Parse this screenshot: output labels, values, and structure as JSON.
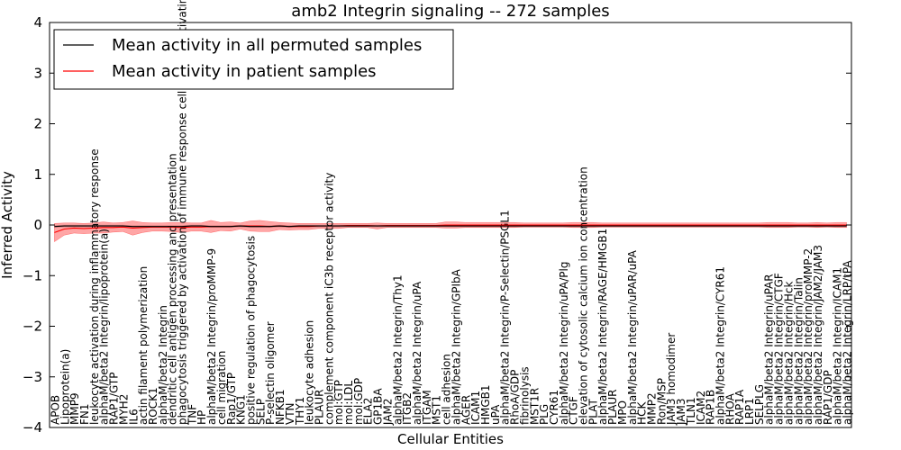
{
  "chart_data": {
    "type": "line",
    "title": "amb2 Integrin signaling -- 272 samples",
    "xlabel": "Cellular Entities",
    "ylabel": "Inferred Activity",
    "ylim": [
      -4,
      4
    ],
    "yticks": [
      -4,
      -3,
      -2,
      -1,
      0,
      1,
      2,
      3,
      4
    ],
    "legend": {
      "position": "top-left",
      "entries": [
        {
          "label": "Mean activity in all permuted samples",
          "color": "#000000"
        },
        {
          "label": "Mean activity in patient samples",
          "color": "#ff0000"
        }
      ]
    },
    "categories": [
      "APOB",
      "Lipoprotein(a)",
      "MMP9",
      "FN1",
      "leukocyte activation during inflammatory response",
      "alphaM/beta2 Integrin/lipoprotein(a)",
      "RAP1/GTP",
      "MYH2",
      "IL6",
      "actin filament polymerization",
      "ROCK1",
      "alphaM/beta2 Integrin",
      "dendritic cell antigen processing and presentation",
      "phagocytosis triggered by activation of immune response cell surface activating receptor",
      "TNF",
      "HP",
      "alphaM/beta2 Integrin/proMMP-9",
      "cell migration",
      "Rap1/GTP",
      "KNG1",
      "positive regulation of phagocytosis",
      "SELP",
      "P-selectin oligomer",
      "NFKB1",
      "VTN",
      "THY1",
      "leukocyte adhesion",
      "PLAUR",
      "complement component iC3b receptor activity",
      "mol:GTP",
      "mol:LDL",
      "mol:GDP",
      "ELA2",
      "GP1BA",
      "JAM2",
      "alphaM/beta2 Integrin/Thy1",
      "ITGB2",
      "alphaM/beta2 Integrin/uPA",
      "ITGAM",
      "MST1",
      "cell adhesion",
      "alphaM/beta2 Integrin/GPIbA",
      "AGER",
      "ICAM1",
      "HMGB1",
      "uPA",
      "alphaM/beta2 Integrin/P-Selectin/PSGL1",
      "RhoA/GDP",
      "fibrinolysis",
      "MST1R",
      "PLG",
      "CYR61",
      "alphaM/beta2 Integrin/uPA/Plg",
      "CTGF",
      "elevation of cytosolic calcium ion concentration",
      "PLAT",
      "alphaM/beta2 Integrin/RAGE/HMGB1",
      "PLAUR",
      "MPO",
      "alphaM/beta2 Integrin/uPAR/uPA",
      "HCK",
      "MMP2",
      "Ron/MSP",
      "JAM3 homodimer",
      "JAM3",
      "TLN1",
      "ICAM2",
      "RAP1B",
      "alphaM/beta2 Integrin/CYR61",
      "RHOA",
      "RAP1A",
      "LRP1",
      "SELPLG",
      "alphaM/beta2 Integrin/uPAR",
      "alphaM/beta2 Integrin/CTGF",
      "alphaM/beta2 Integrin/Hck",
      "alphaM/beta2 Integrin/Talin",
      "alphaM/beta2 Integrin/proMMP-2",
      "alphaM/beta2 Integrin/JAM2/JAM3",
      "RAP1/GDP",
      "alphaM/beta2 Integrin/ICAM1",
      "alphaM/beta2 Integrin/LRP/tPA"
    ],
    "series": [
      {
        "name": "Mean activity in all permuted samples",
        "color": "#000000",
        "values": [
          -0.03,
          -0.02,
          -0.02,
          -0.02,
          -0.02,
          -0.02,
          -0.02,
          -0.02,
          -0.03,
          -0.03,
          -0.03,
          -0.03,
          -0.03,
          -0.03,
          -0.02,
          -0.02,
          -0.03,
          -0.03,
          -0.03,
          -0.02,
          -0.03,
          -0.03,
          -0.03,
          -0.02,
          -0.03,
          -0.02,
          -0.02,
          -0.02,
          -0.02,
          -0.02,
          -0.02,
          -0.02,
          -0.02,
          -0.02,
          -0.02,
          -0.02,
          -0.02,
          -0.02,
          -0.02,
          -0.02,
          -0.02,
          -0.02,
          -0.02,
          -0.02,
          -0.02,
          -0.02,
          -0.02,
          -0.02,
          -0.02,
          -0.02,
          -0.02,
          -0.02,
          -0.02,
          -0.02,
          -0.02,
          -0.02,
          -0.02,
          -0.02,
          -0.02,
          -0.02,
          -0.02,
          -0.02,
          -0.02,
          -0.02,
          -0.02,
          -0.02,
          -0.02,
          -0.02,
          -0.02,
          -0.02,
          -0.02,
          -0.02,
          -0.02,
          -0.02,
          -0.02,
          -0.02,
          -0.02,
          -0.02,
          -0.02,
          -0.02,
          -0.02,
          -0.02
        ],
        "band": [
          0.02,
          0.02,
          0.02,
          0.02,
          0.02,
          0.02,
          0.02,
          0.02,
          0.02,
          0.02,
          0.02,
          0.02,
          0.02,
          0.02,
          0.02,
          0.02,
          0.02,
          0.02,
          0.02,
          0.02,
          0.02,
          0.02,
          0.02,
          0.02,
          0.02,
          0.02,
          0.02,
          0.02,
          0.02,
          0.02,
          0.02,
          0.02,
          0.02,
          0.02,
          0.02,
          0.02,
          0.02,
          0.02,
          0.02,
          0.02,
          0.02,
          0.02,
          0.02,
          0.02,
          0.02,
          0.02,
          0.02,
          0.02,
          0.02,
          0.02,
          0.02,
          0.02,
          0.02,
          0.02,
          0.02,
          0.02,
          0.02,
          0.02,
          0.02,
          0.02,
          0.02,
          0.02,
          0.02,
          0.02,
          0.02,
          0.02,
          0.02,
          0.02,
          0.02,
          0.02,
          0.02,
          0.02,
          0.02,
          0.02,
          0.02,
          0.02,
          0.02,
          0.02,
          0.02,
          0.02,
          0.02,
          0.02
        ]
      },
      {
        "name": "Mean activity in patient samples",
        "color": "#ff0000",
        "values": [
          -0.15,
          -0.08,
          -0.06,
          -0.07,
          -0.06,
          -0.05,
          -0.05,
          -0.04,
          -0.06,
          -0.05,
          -0.04,
          -0.04,
          -0.04,
          -0.05,
          -0.04,
          -0.04,
          -0.03,
          -0.03,
          -0.03,
          -0.02,
          -0.02,
          -0.02,
          -0.03,
          -0.02,
          -0.03,
          -0.03,
          -0.03,
          -0.02,
          -0.02,
          -0.02,
          -0.01,
          -0.01,
          -0.01,
          -0.02,
          -0.01,
          -0.01,
          -0.01,
          -0.01,
          -0.01,
          -0.01,
          0.0,
          0.0,
          0.0,
          0.0,
          0.0,
          0.0,
          0.0,
          0.0,
          0.0,
          0.0,
          0.0,
          0.0,
          0.0,
          0.0,
          0.0,
          0.0,
          0.0,
          0.0,
          0.0,
          0.0,
          0.0,
          0.0,
          0.0,
          0.0,
          0.0,
          0.0,
          0.0,
          0.0,
          0.0,
          0.0,
          0.0,
          0.0,
          0.0,
          0.0,
          0.0,
          0.0,
          0.0,
          0.0,
          0.0,
          0.0,
          0.0,
          0.0
        ],
        "band": [
          0.18,
          0.12,
          0.1,
          0.1,
          0.1,
          0.11,
          0.09,
          0.09,
          0.14,
          0.1,
          0.08,
          0.08,
          0.09,
          0.1,
          0.08,
          0.08,
          0.12,
          0.08,
          0.09,
          0.06,
          0.1,
          0.11,
          0.1,
          0.07,
          0.07,
          0.06,
          0.06,
          0.05,
          0.05,
          0.05,
          0.04,
          0.04,
          0.04,
          0.06,
          0.04,
          0.04,
          0.04,
          0.04,
          0.04,
          0.04,
          0.06,
          0.06,
          0.05,
          0.05,
          0.05,
          0.05,
          0.05,
          0.05,
          0.04,
          0.04,
          0.04,
          0.04,
          0.04,
          0.05,
          0.05,
          0.05,
          0.04,
          0.04,
          0.04,
          0.04,
          0.04,
          0.04,
          0.04,
          0.04,
          0.04,
          0.04,
          0.04,
          0.04,
          0.04,
          0.04,
          0.04,
          0.04,
          0.04,
          0.05,
          0.05,
          0.05,
          0.04,
          0.04,
          0.05,
          0.04,
          0.05,
          0.05
        ]
      }
    ]
  }
}
